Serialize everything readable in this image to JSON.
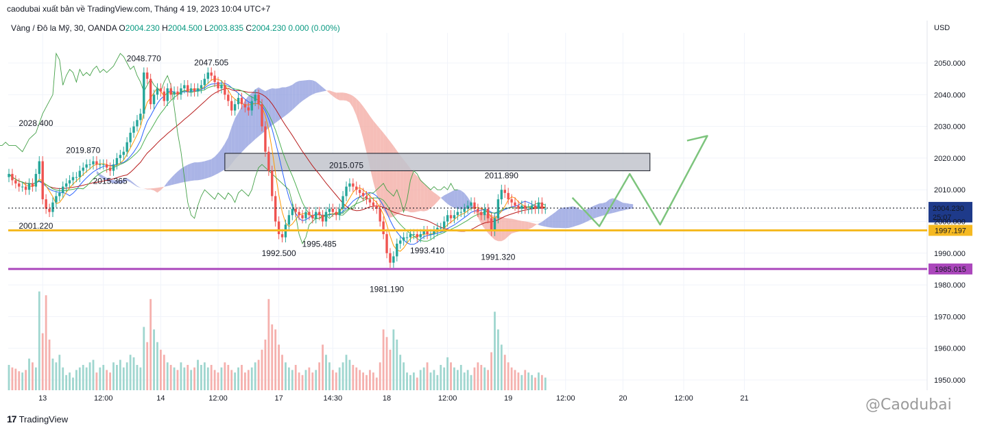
{
  "header": {
    "title": "caodubai xuất bản về TradingView.com, Tháng 4 19, 2023 10:04 UTC+7"
  },
  "symbol": {
    "name": "Vàng / Đô la Mỹ, 30, OANDA",
    "open_label": "O",
    "open": "2004.230",
    "high_label": "H",
    "high": "2004.500",
    "low_label": "L",
    "low": "2003.835",
    "close_label": "C",
    "close": "2004.230",
    "change": "0.000 (0.00%)"
  },
  "footer": {
    "logo_text": "TradingView",
    "watermark": "@Caodubai"
  },
  "colors": {
    "up": "#26a69a",
    "down": "#ef5350",
    "cloud_bull": "#8e9bdd",
    "cloud_bear": "#f3a8a0",
    "support_1": "#f5b921",
    "support_2": "#ab47bc",
    "projection": "#7dc47d",
    "price_tag": "#1e3a8a"
  },
  "chart_data": {
    "type": "candlestick",
    "currency": "USD",
    "y_ticks": [
      "2050.000",
      "2040.000",
      "2030.000",
      "2020.000",
      "2010.000",
      "2000.000",
      "1990.000",
      "1980.000",
      "1970.000",
      "1960.000",
      "1950.000"
    ],
    "y_tick_values": [
      2050,
      2040,
      2030,
      2020,
      2010,
      2000,
      1990,
      1980,
      1970,
      1960,
      1950
    ],
    "x_ticks": [
      "13",
      "12:00",
      "14",
      "12:00",
      "17",
      "14:30",
      "18",
      "12:00",
      "19",
      "12:00",
      "20",
      "12:00",
      "21"
    ],
    "x_tick_index": [
      10,
      28,
      45,
      62,
      80,
      96,
      112,
      130,
      148,
      165,
      182,
      200,
      218
    ],
    "last_price": "2004.230",
    "countdown": "25:07",
    "levels": [
      {
        "label": "1997.197",
        "value": 1997.197,
        "color": "#f5b921"
      },
      {
        "label": "1985.015",
        "value": 1985.015,
        "color": "#ab47bc"
      }
    ],
    "resistance_zone": {
      "from": 2016,
      "to": 2021.5,
      "start_index": 64,
      "end_index": 190
    },
    "annotations": [
      {
        "text": "2048.770",
        "i": 40,
        "v": 2048.77,
        "pos": "above"
      },
      {
        "text": "2047.505",
        "i": 60,
        "v": 2047.505,
        "pos": "above"
      },
      {
        "text": "2028.400",
        "i": 8,
        "v": 2028.4,
        "pos": "above"
      },
      {
        "text": "2019.870",
        "i": 22,
        "v": 2019.87,
        "pos": "above"
      },
      {
        "text": "2015.365",
        "i": 30,
        "v": 2015.365,
        "pos": "below"
      },
      {
        "text": "2015.075",
        "i": 100,
        "v": 2015.075,
        "pos": "above"
      },
      {
        "text": "2011.890",
        "i": 146,
        "v": 2011.89,
        "pos": "above"
      },
      {
        "text": "2001.220",
        "i": 8,
        "v": 2001.22,
        "pos": "below"
      },
      {
        "text": "1992.500",
        "i": 80,
        "v": 1992.5,
        "pos": "below"
      },
      {
        "text": "1995.485",
        "i": 92,
        "v": 1995.485,
        "pos": "below"
      },
      {
        "text": "1993.410",
        "i": 124,
        "v": 1993.41,
        "pos": "below"
      },
      {
        "text": "1991.320",
        "i": 145,
        "v": 1991.32,
        "pos": "below"
      },
      {
        "text": "1981.190",
        "i": 112,
        "v": 1981.19,
        "pos": "below"
      }
    ],
    "projection": [
      {
        "i": 167,
        "v": 2007.5
      },
      {
        "i": 175,
        "v": 1998.5
      },
      {
        "i": 184,
        "v": 2015
      },
      {
        "i": 193,
        "v": 1999
      },
      {
        "i": 207,
        "v": 2027
      },
      {
        "i": 201,
        "v": 2025.5
      }
    ],
    "closes": [
      2015,
      2013,
      2012,
      2011,
      2011,
      2010,
      2012,
      2011,
      2015,
      2019,
      2007,
      2004,
      2003,
      2006,
      2008,
      2009,
      2011,
      2012,
      2013,
      2014,
      2014,
      2016,
      2017,
      2018,
      2018,
      2019,
      2018,
      2018,
      2018,
      2017,
      2016,
      2018,
      2020,
      2021,
      2022,
      2025,
      2028,
      2030,
      2032,
      2034,
      2047,
      2045,
      2037,
      2040,
      2042,
      2041,
      2038,
      2042,
      2040,
      2041,
      2040,
      2042,
      2043,
      2041,
      2042,
      2041,
      2042,
      2043,
      2045,
      2047,
      2046,
      2044,
      2042,
      2043,
      2040,
      2038,
      2035,
      2037,
      2039,
      2037,
      2036,
      2035,
      2038,
      2040,
      2037,
      2030,
      2022,
      2016,
      2008,
      2000,
      1996,
      1995,
      1999,
      2002,
      2004,
      2003,
      2002,
      2001,
      2003,
      2002,
      2001,
      2003,
      2002,
      2000,
      2003,
      2004,
      2003,
      2002,
      2004,
      2008,
      2011,
      2012,
      2011,
      2010,
      2009,
      2008,
      2007,
      2006,
      2005,
      2004,
      2000,
      1996,
      1990,
      1987,
      1989,
      1993,
      1994,
      1995,
      1995,
      1996,
      1996,
      1995,
      1996,
      1997,
      1996,
      1996,
      1997,
      1998,
      1998,
      2000,
      2002,
      2001,
      2002,
      2003,
      2003,
      2004,
      2005,
      2006,
      2004,
      2003,
      2002,
      2004,
      2001,
      1997,
      2001,
      2007,
      2010,
      2009,
      2007,
      2006,
      2005,
      2004,
      2005,
      2004,
      2004,
      2005,
      2004,
      2006,
      2004,
      2004
    ],
    "volumes": [
      20,
      18,
      17,
      15,
      14,
      16,
      25,
      22,
      18,
      78,
      45,
      75,
      40,
      25,
      22,
      28,
      18,
      12,
      14,
      10,
      16,
      18,
      20,
      18,
      22,
      24,
      14,
      18,
      20,
      16,
      14,
      22,
      20,
      24,
      18,
      22,
      28,
      26,
      20,
      18,
      50,
      38,
      72,
      48,
      38,
      32,
      28,
      22,
      20,
      18,
      16,
      22,
      18,
      20,
      16,
      18,
      24,
      20,
      22,
      18,
      20,
      16,
      14,
      18,
      22,
      20,
      16,
      14,
      18,
      20,
      14,
      16,
      18,
      22,
      24,
      32,
      40,
      72,
      52,
      48,
      36,
      28,
      22,
      18,
      16,
      20,
      14,
      12,
      16,
      18,
      14,
      16,
      22,
      36,
      28,
      22,
      16,
      14,
      18,
      22,
      28,
      24,
      20,
      18,
      16,
      14,
      12,
      16,
      14,
      10,
      22,
      48,
      42,
      32,
      48,
      40,
      28,
      22,
      14,
      12,
      14,
      10,
      16,
      18,
      22,
      14,
      16,
      12,
      20,
      18,
      26,
      22,
      18,
      16,
      20,
      14,
      16,
      12,
      18,
      22,
      20,
      18,
      16,
      30,
      62,
      48,
      36,
      28,
      22,
      18,
      16,
      14,
      12,
      16,
      14,
      12,
      10,
      14,
      12,
      10
    ]
  }
}
